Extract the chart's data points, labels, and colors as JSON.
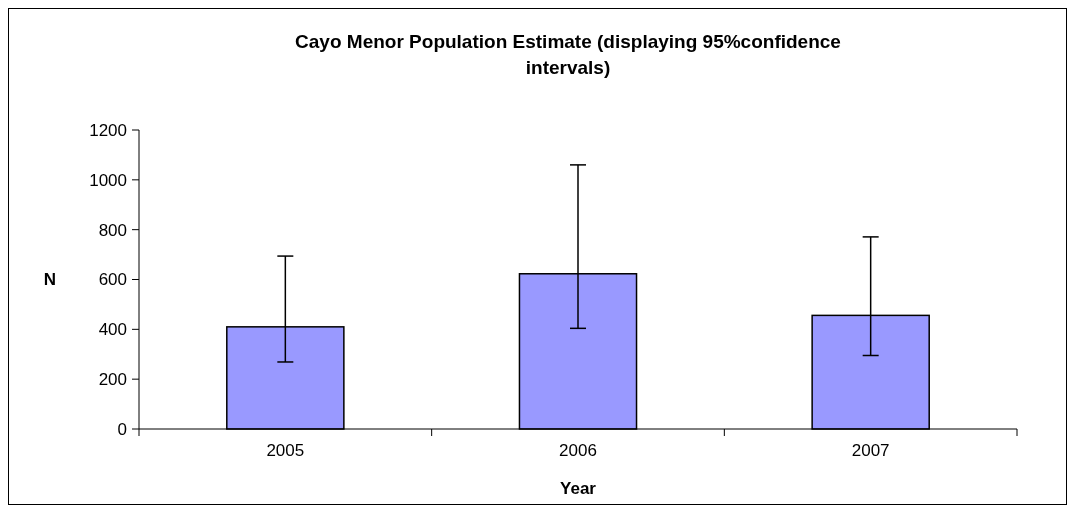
{
  "chart_data": {
    "type": "bar",
    "title": "Cayo Menor Population Estimate (displaying 95%confidence intervals)",
    "xlabel": "Year",
    "ylabel": "N",
    "categories": [
      "2005",
      "2006",
      "2007"
    ],
    "series": [
      {
        "color": "#9999ff",
        "values": [
          410,
          623,
          456
        ],
        "errors": [
          [
            269,
            694
          ],
          [
            404,
            1060
          ],
          [
            295,
            771
          ]
        ]
      }
    ],
    "ylim": [
      0,
      1200
    ],
    "yticks": [
      0,
      200,
      400,
      600,
      800,
      1000,
      1200
    ],
    "grid": false
  }
}
